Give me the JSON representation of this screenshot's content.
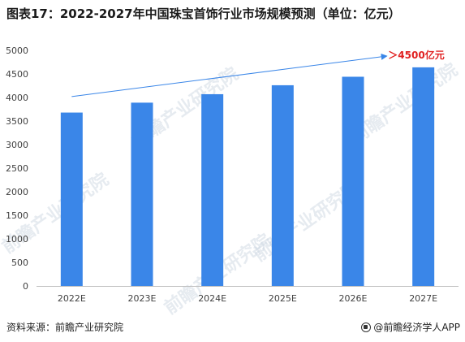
{
  "title": "图表17：2022-2027年中国珠宝首饰行业市场规模预测（单位：亿元）",
  "source": "资料来源：前瞻产业研究院",
  "brand": "@前瞻经济学人APP",
  "watermark_text": "前瞻产业研究院",
  "colors": {
    "bar": "#3a86e8",
    "trend": "#3a86e8",
    "annotation": "#e02020",
    "axis": "#bfbfbf",
    "tick_text": "#404040"
  },
  "chart_data": {
    "type": "bar",
    "categories": [
      "2022E",
      "2023E",
      "2024E",
      "2025E",
      "2026E",
      "2027E"
    ],
    "values": [
      3680,
      3890,
      4070,
      4260,
      4440,
      4640
    ],
    "ylim": [
      0,
      5000
    ],
    "yticks": [
      0,
      500,
      1000,
      1500,
      2000,
      2500,
      3000,
      3500,
      4000,
      4500,
      5000
    ],
    "annotation": "＞4500亿元",
    "trend_arrow": {
      "from_category": "2022E",
      "to_category": "2027E",
      "from_value": 4020,
      "to_value": 4880
    },
    "grid": false,
    "title": "",
    "xlabel": "",
    "ylabel": ""
  }
}
